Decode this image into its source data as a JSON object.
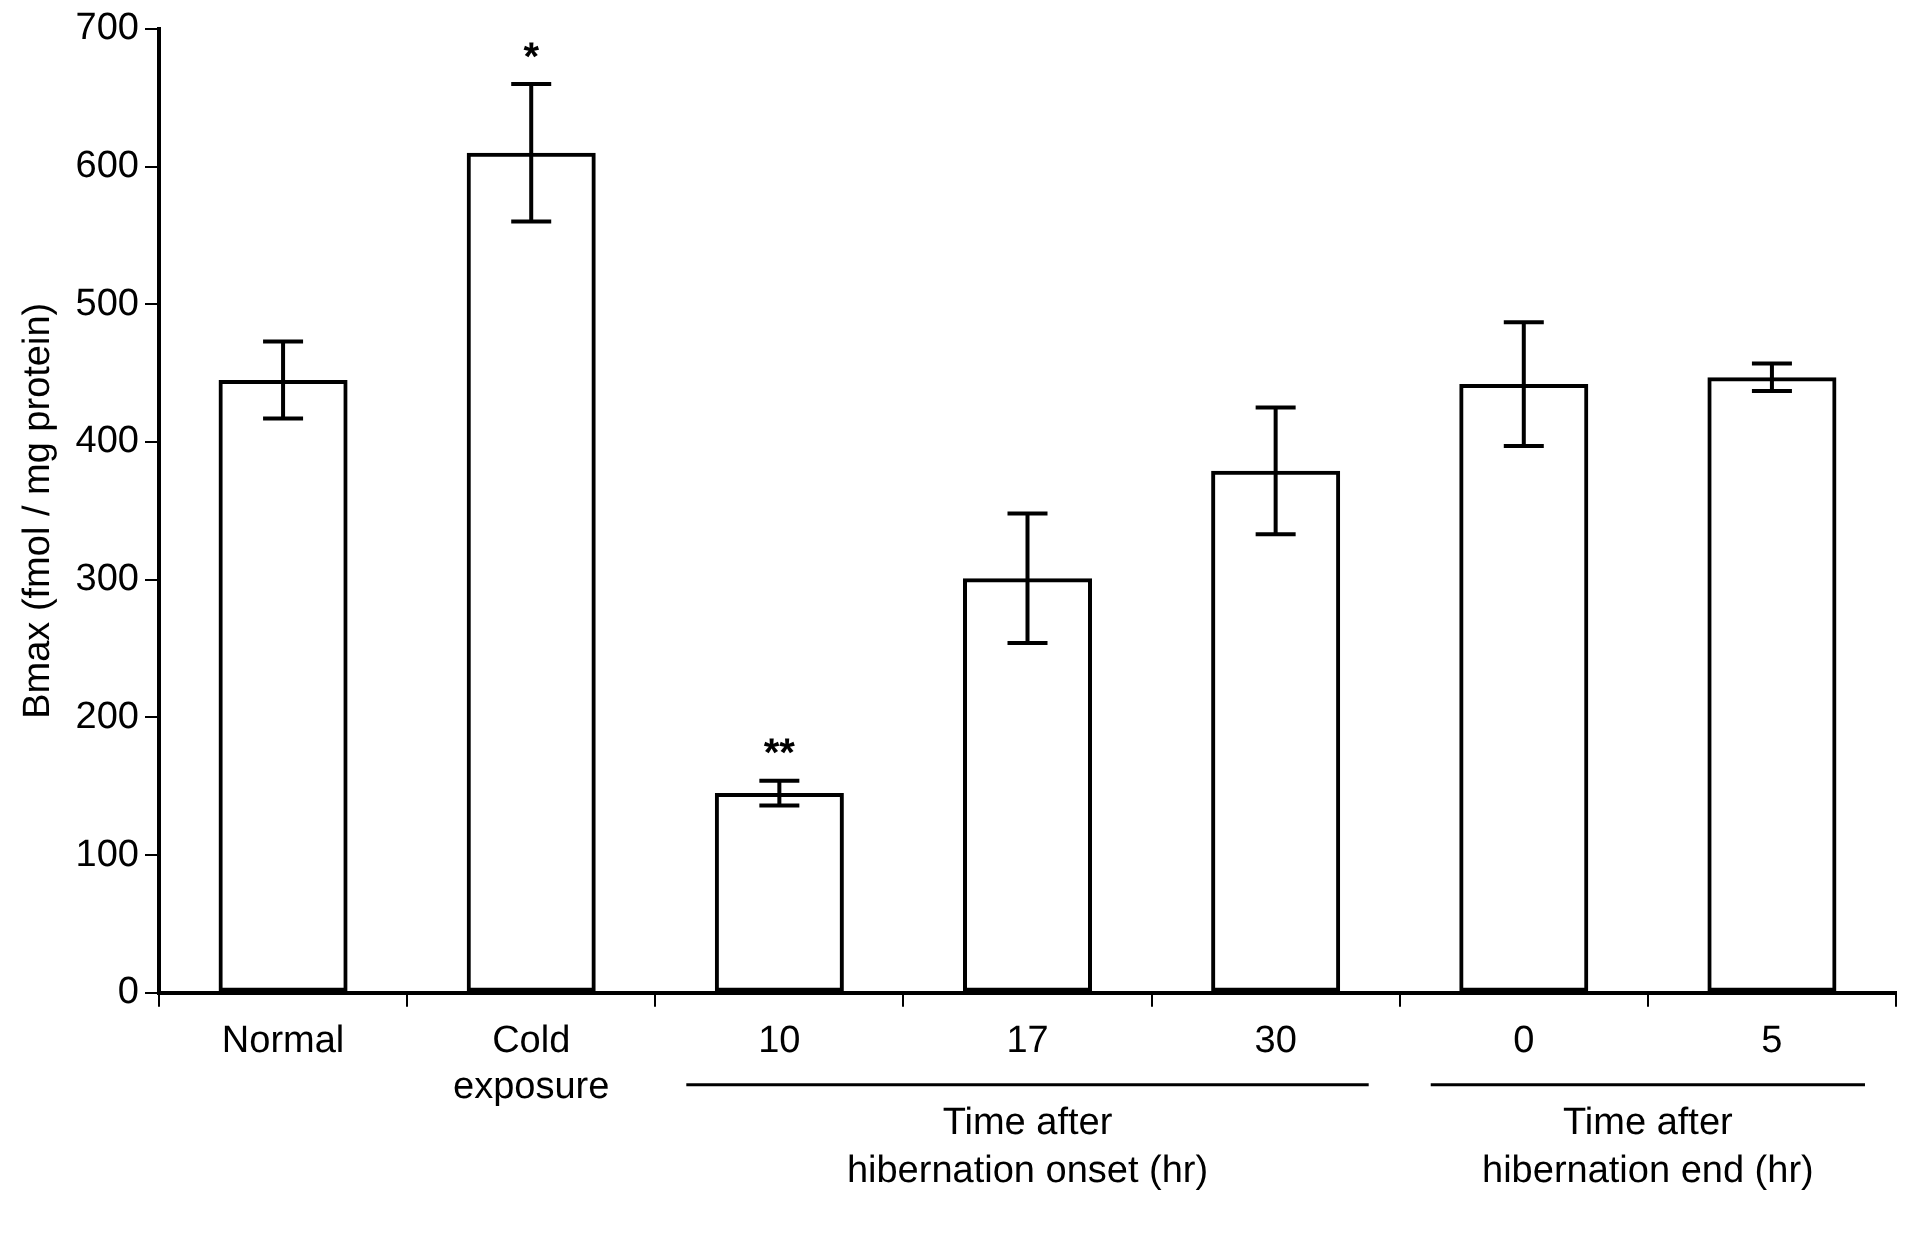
{
  "chart_data": {
    "type": "bar",
    "ylabel": "Bmax (fmol / mg protein)",
    "categories": [
      "Normal",
      "Cold exposure",
      "10",
      "17",
      "30",
      "0",
      "5"
    ],
    "values": [
      445,
      610,
      145,
      301,
      379,
      442,
      447
    ],
    "errors": [
      28,
      50,
      9,
      47,
      46,
      45,
      10
    ],
    "color": "#000000",
    "ylim": [
      0,
      700
    ],
    "yticks": [
      0,
      100,
      200,
      300,
      400,
      500,
      600,
      700
    ],
    "grid": false,
    "legend": false,
    "annotations": [
      {
        "text": "*",
        "x": "Cold exposure",
        "y": 661
      },
      {
        "text": "**",
        "x": "10",
        "y": 155
      },
      "Time after hibernation onset (hr)",
      "Time after hibernation end (hr)"
    ]
  }
}
